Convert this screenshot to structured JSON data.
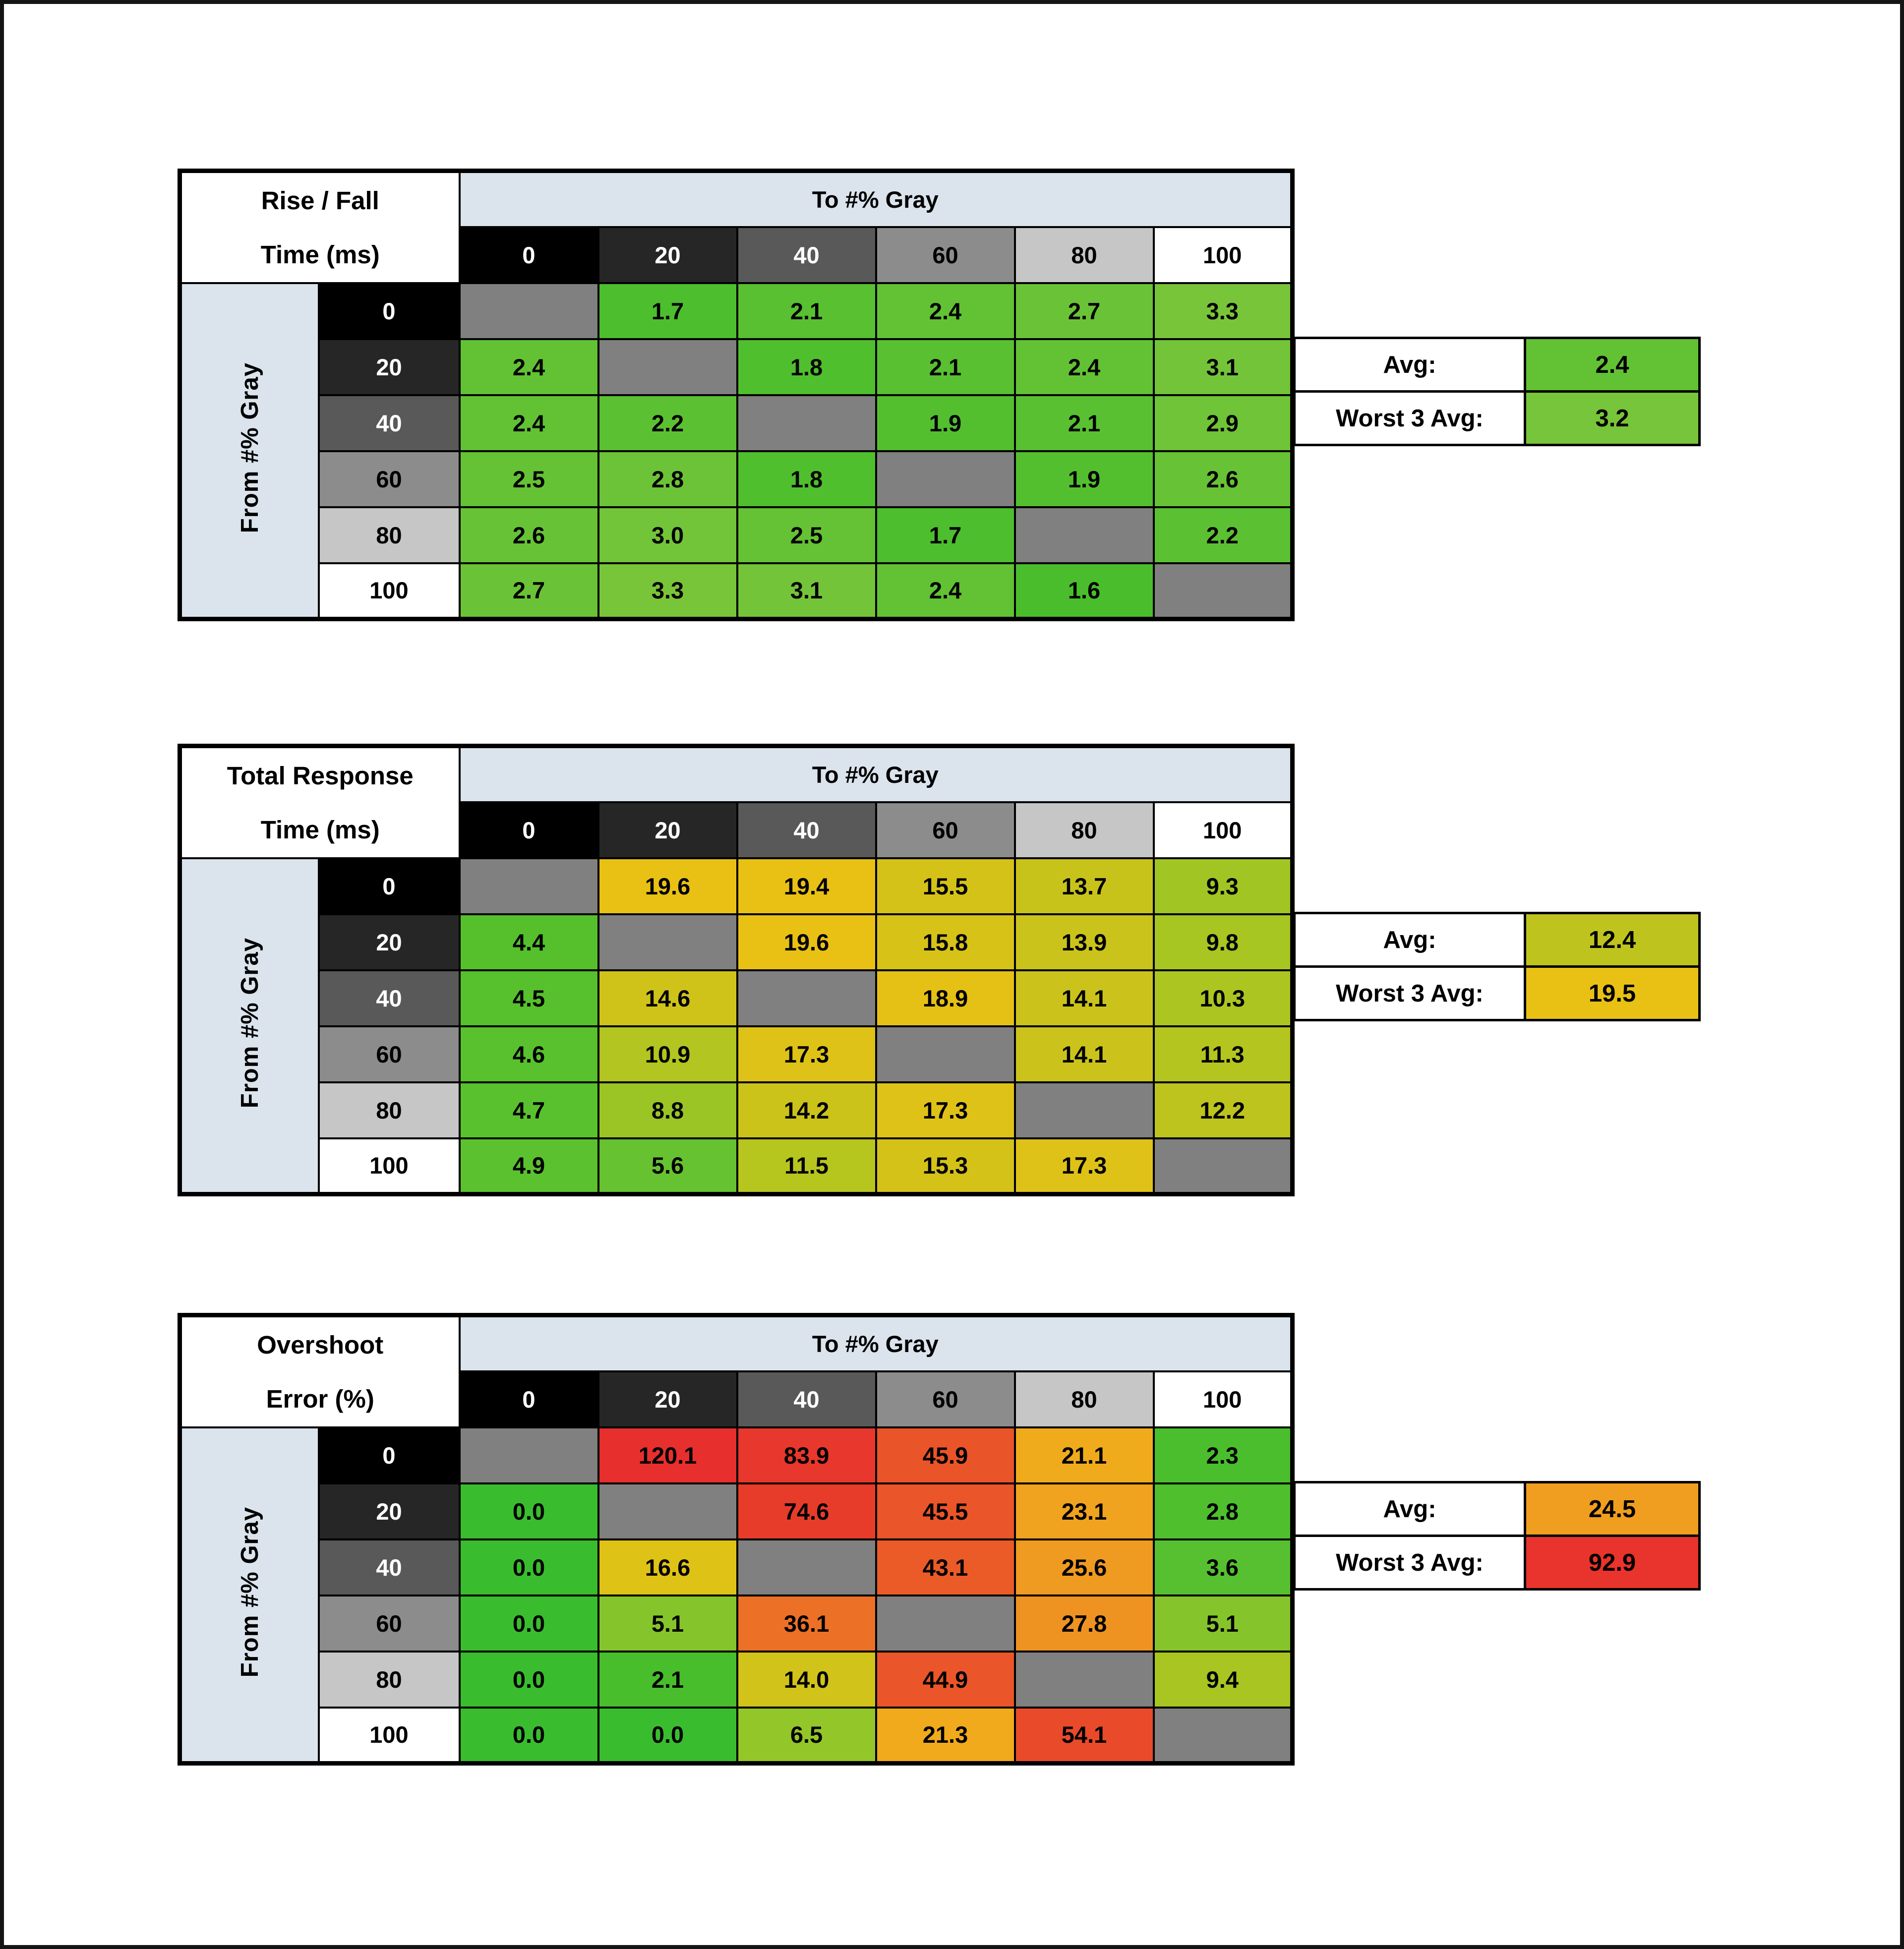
{
  "page": {
    "background": "#ffffff",
    "frame_color": "#151515"
  },
  "labels": {
    "to_gray": "To #% Gray",
    "from_gray": "From #% Gray",
    "avg": "Avg:",
    "worst3": "Worst 3 Avg:"
  },
  "gray_steps": [
    "0",
    "20",
    "40",
    "60",
    "80",
    "100"
  ],
  "header_colors": [
    {
      "bg": "#000000",
      "fg": "#ffffff"
    },
    {
      "bg": "#262626",
      "fg": "#ffffff"
    },
    {
      "bg": "#595959",
      "fg": "#ffffff"
    },
    {
      "bg": "#8c8c8c",
      "fg": "#000000"
    },
    {
      "bg": "#c6c6c6",
      "fg": "#000000"
    },
    {
      "bg": "#ffffff",
      "fg": "#000000"
    }
  ],
  "diag_color": "#808080",
  "tables": [
    {
      "title_line1": "Rise / Fall",
      "title_line2": "Time (ms)",
      "avg": {
        "v": "2.4",
        "c": "#62c234"
      },
      "worst3": {
        "v": "3.2",
        "c": "#77c53a"
      },
      "rows": [
        [
          null,
          {
            "v": "1.7",
            "c": "#4dbe2d"
          },
          {
            "v": "2.1",
            "c": "#59c031"
          },
          {
            "v": "2.4",
            "c": "#62c234"
          },
          {
            "v": "2.7",
            "c": "#6ac336"
          },
          {
            "v": "3.3",
            "c": "#79c53a"
          }
        ],
        [
          {
            "v": "2.4",
            "c": "#62c234"
          },
          null,
          {
            "v": "1.8",
            "c": "#50bf2e"
          },
          {
            "v": "2.1",
            "c": "#59c031"
          },
          {
            "v": "2.4",
            "c": "#62c234"
          },
          {
            "v": "3.1",
            "c": "#74c439"
          }
        ],
        [
          {
            "v": "2.4",
            "c": "#62c234"
          },
          {
            "v": "2.2",
            "c": "#5cc132"
          },
          null,
          {
            "v": "1.9",
            "c": "#53bf2f"
          },
          {
            "v": "2.1",
            "c": "#59c031"
          },
          {
            "v": "2.9",
            "c": "#6fc437"
          }
        ],
        [
          {
            "v": "2.5",
            "c": "#65c234"
          },
          {
            "v": "2.8",
            "c": "#6dc337"
          },
          {
            "v": "1.8",
            "c": "#50bf2e"
          },
          null,
          {
            "v": "1.9",
            "c": "#53bf2f"
          },
          {
            "v": "2.6",
            "c": "#67c335"
          }
        ],
        [
          {
            "v": "2.6",
            "c": "#67c335"
          },
          {
            "v": "3.0",
            "c": "#72c438"
          },
          {
            "v": "2.5",
            "c": "#65c234"
          },
          {
            "v": "1.7",
            "c": "#4dbe2d"
          },
          null,
          {
            "v": "2.2",
            "c": "#5cc132"
          }
        ],
        [
          {
            "v": "2.7",
            "c": "#6ac336"
          },
          {
            "v": "3.3",
            "c": "#79c53a"
          },
          {
            "v": "3.1",
            "c": "#74c439"
          },
          {
            "v": "2.4",
            "c": "#62c234"
          },
          {
            "v": "1.6",
            "c": "#4abd2c"
          },
          null
        ]
      ]
    },
    {
      "title_line1": "Total Response",
      "title_line2": "Time (ms)",
      "avg": {
        "v": "12.4",
        "c": "#bec41d"
      },
      "worst3": {
        "v": "19.5",
        "c": "#e8c114"
      },
      "rows": [
        [
          null,
          {
            "v": "19.6",
            "c": "#e9c114"
          },
          {
            "v": "19.4",
            "c": "#e8c114"
          },
          {
            "v": "15.5",
            "c": "#d5c219"
          },
          {
            "v": "13.7",
            "c": "#c8c31b"
          },
          {
            "v": "9.3",
            "c": "#a1c523"
          }
        ],
        [
          {
            "v": "4.4",
            "c": "#55c02c"
          },
          null,
          {
            "v": "19.6",
            "c": "#e9c114"
          },
          {
            "v": "15.8",
            "c": "#d7c218"
          },
          {
            "v": "13.9",
            "c": "#cac31b"
          },
          {
            "v": "9.8",
            "c": "#a7c622"
          }
        ],
        [
          {
            "v": "4.5",
            "c": "#56c02d"
          },
          {
            "v": "14.6",
            "c": "#cfc31a"
          },
          null,
          {
            "v": "18.9",
            "c": "#e5c115"
          },
          {
            "v": "14.1",
            "c": "#cbc31b"
          },
          {
            "v": "10.3",
            "c": "#acc521"
          }
        ],
        [
          {
            "v": "4.6",
            "c": "#58c12d"
          },
          {
            "v": "10.9",
            "c": "#b2c520"
          },
          {
            "v": "17.3",
            "c": "#dfc217"
          },
          null,
          {
            "v": "14.1",
            "c": "#cbc31b"
          },
          {
            "v": "11.3",
            "c": "#b5c51f"
          }
        ],
        [
          {
            "v": "4.7",
            "c": "#59c12e"
          },
          {
            "v": "8.8",
            "c": "#9bc525"
          },
          {
            "v": "14.2",
            "c": "#ccc31a"
          },
          {
            "v": "17.3",
            "c": "#dfc217"
          },
          null,
          {
            "v": "12.2",
            "c": "#bdc41d"
          }
        ],
        [
          {
            "v": "4.9",
            "c": "#5cc12f"
          },
          {
            "v": "5.6",
            "c": "#66c231"
          },
          {
            "v": "11.5",
            "c": "#b7c51f"
          },
          {
            "v": "15.3",
            "c": "#d4c219"
          },
          {
            "v": "17.3",
            "c": "#dfc217"
          },
          null
        ]
      ]
    },
    {
      "title_line1": "Overshoot",
      "title_line2": "Error (%)",
      "avg": {
        "v": "24.5",
        "c": "#f09e1f"
      },
      "worst3": {
        "v": "92.9",
        "c": "#e8342c"
      },
      "rows": [
        [
          null,
          {
            "v": "120.1",
            "c": "#e72f2d"
          },
          {
            "v": "83.9",
            "c": "#e8372c"
          },
          {
            "v": "45.9",
            "c": "#ea5429"
          },
          {
            "v": "21.1",
            "c": "#f0ab1c"
          },
          {
            "v": "2.3",
            "c": "#4abe2d"
          }
        ],
        [
          {
            "v": "0.0",
            "c": "#3abc2f"
          },
          null,
          {
            "v": "74.6",
            "c": "#e83c2b"
          },
          {
            "v": "45.5",
            "c": "#ea5529"
          },
          {
            "v": "23.1",
            "c": "#f0a31e"
          },
          {
            "v": "2.8",
            "c": "#4fbf2e"
          }
        ],
        [
          {
            "v": "0.0",
            "c": "#3abc2f"
          },
          {
            "v": "16.6",
            "c": "#dfc216"
          },
          null,
          {
            "v": "43.1",
            "c": "#eb5b28"
          },
          {
            "v": "25.6",
            "c": "#ef9a20"
          },
          {
            "v": "3.6",
            "c": "#57c030"
          }
        ],
        [
          {
            "v": "0.0",
            "c": "#3abc2f"
          },
          {
            "v": "5.1",
            "c": "#85c52b"
          },
          {
            "v": "36.1",
            "c": "#ec7026"
          },
          null,
          {
            "v": "27.8",
            "c": "#ee9322"
          },
          {
            "v": "5.1",
            "c": "#85c52b"
          }
        ],
        [
          {
            "v": "0.0",
            "c": "#3abc2f"
          },
          {
            "v": "2.1",
            "c": "#48be2d"
          },
          {
            "v": "14.0",
            "c": "#d1c31a"
          },
          {
            "v": "44.9",
            "c": "#ea5629"
          },
          null,
          {
            "v": "9.4",
            "c": "#a8c522"
          }
        ],
        [
          {
            "v": "0.0",
            "c": "#3abc2f"
          },
          {
            "v": "0.0",
            "c": "#3abc2f"
          },
          {
            "v": "6.5",
            "c": "#93c628"
          },
          {
            "v": "21.3",
            "c": "#f0aa1c"
          },
          {
            "v": "54.1",
            "c": "#e94a2a"
          },
          null
        ]
      ]
    }
  ],
  "chart_data": [
    {
      "type": "heatmap",
      "title": "Rise / Fall Time (ms)",
      "xlabel": "To #% Gray",
      "ylabel": "From #% Gray",
      "x": [
        0,
        20,
        40,
        60,
        80,
        100
      ],
      "y": [
        0,
        20,
        40,
        60,
        80,
        100
      ],
      "values": [
        [
          null,
          1.7,
          2.1,
          2.4,
          2.7,
          3.3
        ],
        [
          2.4,
          null,
          1.8,
          2.1,
          2.4,
          3.1
        ],
        [
          2.4,
          2.2,
          null,
          1.9,
          2.1,
          2.9
        ],
        [
          2.5,
          2.8,
          1.8,
          null,
          1.9,
          2.6
        ],
        [
          2.6,
          3.0,
          2.5,
          1.7,
          null,
          2.2
        ],
        [
          2.7,
          3.3,
          3.1,
          2.4,
          1.6,
          null
        ]
      ],
      "avg": 2.4,
      "worst_3_avg": 3.2
    },
    {
      "type": "heatmap",
      "title": "Total Response Time (ms)",
      "xlabel": "To #% Gray",
      "ylabel": "From #% Gray",
      "x": [
        0,
        20,
        40,
        60,
        80,
        100
      ],
      "y": [
        0,
        20,
        40,
        60,
        80,
        100
      ],
      "values": [
        [
          null,
          19.6,
          19.4,
          15.5,
          13.7,
          9.3
        ],
        [
          4.4,
          null,
          19.6,
          15.8,
          13.9,
          9.8
        ],
        [
          4.5,
          14.6,
          null,
          18.9,
          14.1,
          10.3
        ],
        [
          4.6,
          10.9,
          17.3,
          null,
          14.1,
          11.3
        ],
        [
          4.7,
          8.8,
          14.2,
          17.3,
          null,
          12.2
        ],
        [
          4.9,
          5.6,
          11.5,
          15.3,
          17.3,
          null
        ]
      ],
      "avg": 12.4,
      "worst_3_avg": 19.5
    },
    {
      "type": "heatmap",
      "title": "Overshoot Error (%)",
      "xlabel": "To #% Gray",
      "ylabel": "From #% Gray",
      "x": [
        0,
        20,
        40,
        60,
        80,
        100
      ],
      "y": [
        0,
        20,
        40,
        60,
        80,
        100
      ],
      "values": [
        [
          null,
          120.1,
          83.9,
          45.9,
          21.1,
          2.3
        ],
        [
          0.0,
          null,
          74.6,
          45.5,
          23.1,
          2.8
        ],
        [
          0.0,
          16.6,
          null,
          43.1,
          25.6,
          3.6
        ],
        [
          0.0,
          5.1,
          36.1,
          null,
          27.8,
          5.1
        ],
        [
          0.0,
          2.1,
          14.0,
          44.9,
          null,
          9.4
        ],
        [
          0.0,
          0.0,
          6.5,
          21.3,
          54.1,
          null
        ]
      ],
      "avg": 24.5,
      "worst_3_avg": 92.9
    }
  ]
}
